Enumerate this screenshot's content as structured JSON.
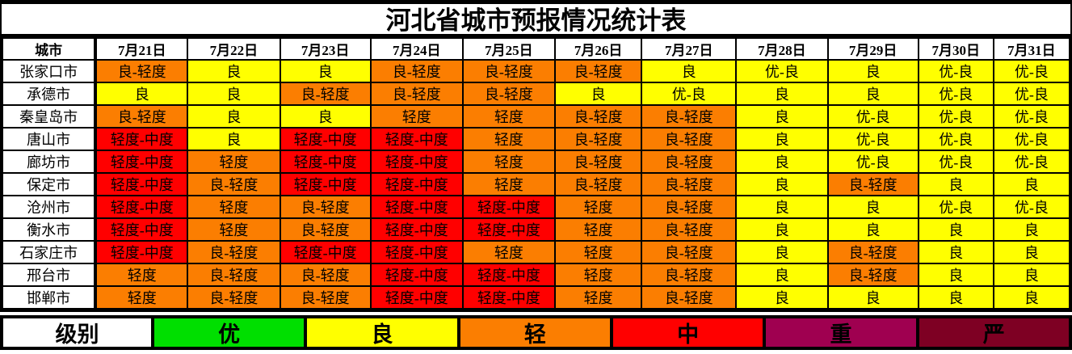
{
  "chart_data": {
    "type": "table",
    "title": "河北省城市预报情况统计表",
    "columns": [
      "城市",
      "7月21日",
      "7月22日",
      "7月23日",
      "7月24日",
      "7月25日",
      "7月26日",
      "7月27日",
      "7月28日",
      "7月29日",
      "7月30日",
      "7月31日"
    ],
    "rows": [
      {
        "city": "张家口市",
        "values": [
          "良-轻度",
          "良",
          "良",
          "良-轻度",
          "良-轻度",
          "良-轻度",
          "良",
          "优-良",
          "良",
          "优-良",
          "优-良"
        ]
      },
      {
        "city": "承德市",
        "values": [
          "良",
          "良",
          "良-轻度",
          "良-轻度",
          "良-轻度",
          "良",
          "优-良",
          "良",
          "良",
          "优-良",
          "优-良"
        ]
      },
      {
        "city": "秦皇岛市",
        "values": [
          "良-轻度",
          "良",
          "良",
          "轻度",
          "轻度",
          "良-轻度",
          "良-轻度",
          "良",
          "优-良",
          "优-良",
          "优-良"
        ]
      },
      {
        "city": "唐山市",
        "values": [
          "轻度-中度",
          "良",
          "轻度-中度",
          "轻度-中度",
          "轻度",
          "良-轻度",
          "良-轻度",
          "良",
          "优-良",
          "优-良",
          "优-良"
        ]
      },
      {
        "city": "廊坊市",
        "values": [
          "轻度-中度",
          "轻度",
          "轻度-中度",
          "轻度-中度",
          "轻度",
          "良-轻度",
          "良-轻度",
          "良",
          "优-良",
          "优-良",
          "优-良"
        ]
      },
      {
        "city": "保定市",
        "values": [
          "轻度-中度",
          "良-轻度",
          "轻度-中度",
          "轻度-中度",
          "轻度",
          "良-轻度",
          "良-轻度",
          "良",
          "良-轻度",
          "良",
          "良"
        ]
      },
      {
        "city": "沧州市",
        "values": [
          "轻度-中度",
          "轻度",
          "良-轻度",
          "轻度-中度",
          "轻度-中度",
          "轻度",
          "良-轻度",
          "良",
          "良",
          "优-良",
          "优-良"
        ]
      },
      {
        "city": "衡水市",
        "values": [
          "轻度-中度",
          "轻度",
          "良-轻度",
          "轻度-中度",
          "轻度-中度",
          "轻度",
          "良-轻度",
          "良",
          "良",
          "良",
          "良"
        ]
      },
      {
        "city": "石家庄市",
        "values": [
          "轻度-中度",
          "良-轻度",
          "轻度-中度",
          "轻度-中度",
          "轻度",
          "轻度",
          "良-轻度",
          "良",
          "良-轻度",
          "良",
          "良"
        ]
      },
      {
        "city": "邢台市",
        "values": [
          "轻度",
          "良-轻度",
          "良-轻度",
          "轻度-中度",
          "轻度-中度",
          "轻度",
          "良-轻度",
          "良",
          "良-轻度",
          "良",
          "良"
        ]
      },
      {
        "city": "邯郸市",
        "values": [
          "轻度",
          "良-轻度",
          "良-轻度",
          "轻度-中度",
          "轻度-中度",
          "轻度",
          "良-轻度",
          "良",
          "良",
          "良",
          "良"
        ]
      }
    ],
    "value_colors": {
      "优-良": "#FFFF00",
      "良": "#FFFF00",
      "良-轻度": "#FB7E01",
      "轻度": "#FB7E01",
      "轻度-中度": "#FF0000"
    },
    "legend": {
      "label": "级别",
      "items": [
        {
          "text": "优",
          "color": "#00DF00"
        },
        {
          "text": "良",
          "color": "#FFFF00"
        },
        {
          "text": "轻",
          "color": "#FB7E01"
        },
        {
          "text": "中",
          "color": "#FF0000"
        },
        {
          "text": "重",
          "color": "#9F0050"
        },
        {
          "text": "严",
          "color": "#7E0023"
        }
      ]
    },
    "layout_hints": {
      "grid": "on",
      "legend_position": "bottom",
      "header_background": "#FFFFFF",
      "border_color": "#000000"
    }
  }
}
